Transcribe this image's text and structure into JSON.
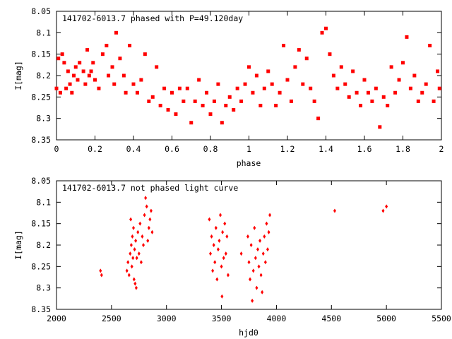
{
  "chart_data": [
    {
      "type": "scatter",
      "title": "141702-6013.7 phased with P=49.120day",
      "xlabel": "phase",
      "ylabel": "I[mag]",
      "xlim": [
        0,
        2
      ],
      "ylim": [
        8.35,
        8.05
      ],
      "y_inverted": true,
      "xticks": [
        0,
        0.2,
        0.4,
        0.6,
        0.8,
        1,
        1.2,
        1.4,
        1.6,
        1.8,
        2
      ],
      "yticks": [
        8.05,
        8.1,
        8.15,
        8.2,
        8.25,
        8.3,
        8.35
      ],
      "marker_color": "#ff0000",
      "marker": "square",
      "points": [
        [
          0.0,
          8.23
        ],
        [
          0.01,
          8.16
        ],
        [
          0.02,
          8.24
        ],
        [
          0.03,
          8.15
        ],
        [
          0.04,
          8.17
        ],
        [
          0.05,
          8.23
        ],
        [
          0.06,
          8.19
        ],
        [
          0.07,
          8.22
        ],
        [
          0.08,
          8.24
        ],
        [
          0.09,
          8.2
        ],
        [
          0.1,
          8.18
        ],
        [
          0.11,
          8.21
        ],
        [
          0.12,
          8.17
        ],
        [
          0.14,
          8.19
        ],
        [
          0.15,
          8.22
        ],
        [
          0.16,
          8.14
        ],
        [
          0.17,
          8.2
        ],
        [
          0.18,
          8.19
        ],
        [
          0.19,
          8.17
        ],
        [
          0.2,
          8.21
        ],
        [
          0.22,
          8.23
        ],
        [
          0.24,
          8.15
        ],
        [
          0.26,
          8.13
        ],
        [
          0.27,
          8.2
        ],
        [
          0.29,
          8.18
        ],
        [
          0.3,
          8.22
        ],
        [
          0.31,
          8.1
        ],
        [
          0.33,
          8.16
        ],
        [
          0.35,
          8.2
        ],
        [
          0.36,
          8.24
        ],
        [
          0.38,
          8.13
        ],
        [
          0.4,
          8.22
        ],
        [
          0.42,
          8.24
        ],
        [
          0.44,
          8.21
        ],
        [
          0.46,
          8.15
        ],
        [
          0.48,
          8.26
        ],
        [
          0.5,
          8.25
        ],
        [
          0.52,
          8.18
        ],
        [
          0.54,
          8.27
        ],
        [
          0.56,
          8.23
        ],
        [
          0.58,
          8.28
        ],
        [
          0.6,
          8.24
        ],
        [
          0.62,
          8.29
        ],
        [
          0.64,
          8.23
        ],
        [
          0.66,
          8.26
        ],
        [
          0.68,
          8.23
        ],
        [
          0.7,
          8.31
        ],
        [
          0.72,
          8.26
        ],
        [
          0.74,
          8.21
        ],
        [
          0.76,
          8.27
        ],
        [
          0.78,
          8.24
        ],
        [
          0.8,
          8.29
        ],
        [
          0.82,
          8.26
        ],
        [
          0.84,
          8.22
        ],
        [
          0.86,
          8.31
        ],
        [
          0.88,
          8.27
        ],
        [
          0.9,
          8.25
        ],
        [
          0.92,
          8.28
        ],
        [
          0.94,
          8.23
        ],
        [
          0.96,
          8.26
        ],
        [
          0.98,
          8.22
        ],
        [
          1.0,
          8.18
        ],
        [
          1.02,
          8.24
        ],
        [
          1.04,
          8.2
        ],
        [
          1.06,
          8.27
        ],
        [
          1.08,
          8.23
        ],
        [
          1.1,
          8.19
        ],
        [
          1.12,
          8.22
        ],
        [
          1.14,
          8.27
        ],
        [
          1.16,
          8.24
        ],
        [
          1.18,
          8.13
        ],
        [
          1.2,
          8.21
        ],
        [
          1.22,
          8.26
        ],
        [
          1.24,
          8.18
        ],
        [
          1.26,
          8.14
        ],
        [
          1.28,
          8.22
        ],
        [
          1.3,
          8.16
        ],
        [
          1.32,
          8.23
        ],
        [
          1.34,
          8.26
        ],
        [
          1.36,
          8.3
        ],
        [
          1.38,
          8.1
        ],
        [
          1.4,
          8.09
        ],
        [
          1.42,
          8.15
        ],
        [
          1.44,
          8.2
        ],
        [
          1.46,
          8.23
        ],
        [
          1.48,
          8.18
        ],
        [
          1.5,
          8.22
        ],
        [
          1.52,
          8.25
        ],
        [
          1.54,
          8.19
        ],
        [
          1.56,
          8.24
        ],
        [
          1.58,
          8.27
        ],
        [
          1.6,
          8.21
        ],
        [
          1.62,
          8.24
        ],
        [
          1.64,
          8.26
        ],
        [
          1.66,
          8.23
        ],
        [
          1.68,
          8.32
        ],
        [
          1.7,
          8.25
        ],
        [
          1.72,
          8.27
        ],
        [
          1.74,
          8.18
        ],
        [
          1.76,
          8.24
        ],
        [
          1.78,
          8.21
        ],
        [
          1.8,
          8.17
        ],
        [
          1.82,
          8.11
        ],
        [
          1.84,
          8.23
        ],
        [
          1.86,
          8.2
        ],
        [
          1.88,
          8.26
        ],
        [
          1.9,
          8.24
        ],
        [
          1.92,
          8.22
        ],
        [
          1.94,
          8.13
        ],
        [
          1.96,
          8.26
        ],
        [
          1.98,
          8.19
        ],
        [
          1.99,
          8.23
        ]
      ]
    },
    {
      "type": "scatter",
      "title": "141702-6013.7 not phased light curve",
      "xlabel": "hjd0",
      "ylabel": "I[mag]",
      "xlim": [
        2000,
        5500
      ],
      "ylim": [
        8.35,
        8.05
      ],
      "y_inverted": true,
      "xticks": [
        2000,
        2500,
        3000,
        3500,
        4000,
        4500,
        5000,
        5500
      ],
      "yticks": [
        8.05,
        8.1,
        8.15,
        8.2,
        8.25,
        8.3,
        8.35
      ],
      "marker_color": "#ff0000",
      "marker": "diamond",
      "points": [
        [
          2400,
          8.26
        ],
        [
          2410,
          8.27
        ],
        [
          2640,
          8.26
        ],
        [
          2650,
          8.24
        ],
        [
          2660,
          8.27
        ],
        [
          2670,
          8.22
        ],
        [
          2675,
          8.14
        ],
        [
          2680,
          8.2
        ],
        [
          2685,
          8.25
        ],
        [
          2690,
          8.18
        ],
        [
          2695,
          8.23
        ],
        [
          2700,
          8.16
        ],
        [
          2705,
          8.28
        ],
        [
          2710,
          8.21
        ],
        [
          2715,
          8.29
        ],
        [
          2720,
          8.19
        ],
        [
          2725,
          8.3
        ],
        [
          2730,
          8.23
        ],
        [
          2740,
          8.17
        ],
        [
          2750,
          8.22
        ],
        [
          2760,
          8.15
        ],
        [
          2770,
          8.24
        ],
        [
          2780,
          8.18
        ],
        [
          2790,
          8.2
        ],
        [
          2800,
          8.13
        ],
        [
          2810,
          8.09
        ],
        [
          2820,
          8.11
        ],
        [
          2830,
          8.19
        ],
        [
          2840,
          8.16
        ],
        [
          2850,
          8.14
        ],
        [
          2860,
          8.12
        ],
        [
          2870,
          8.17
        ],
        [
          3390,
          8.14
        ],
        [
          3400,
          8.22
        ],
        [
          3410,
          8.18
        ],
        [
          3420,
          8.26
        ],
        [
          3430,
          8.2
        ],
        [
          3440,
          8.24
        ],
        [
          3450,
          8.16
        ],
        [
          3460,
          8.28
        ],
        [
          3470,
          8.21
        ],
        [
          3480,
          8.19
        ],
        [
          3490,
          8.13
        ],
        [
          3500,
          8.25
        ],
        [
          3505,
          8.32
        ],
        [
          3510,
          8.17
        ],
        [
          3520,
          8.23
        ],
        [
          3530,
          8.15
        ],
        [
          3540,
          8.22
        ],
        [
          3550,
          8.18
        ],
        [
          3560,
          8.27
        ],
        [
          3680,
          8.22
        ],
        [
          3740,
          8.18
        ],
        [
          3750,
          8.24
        ],
        [
          3760,
          8.28
        ],
        [
          3770,
          8.2
        ],
        [
          3780,
          8.33
        ],
        [
          3790,
          8.26
        ],
        [
          3800,
          8.16
        ],
        [
          3810,
          8.23
        ],
        [
          3820,
          8.3
        ],
        [
          3830,
          8.21
        ],
        [
          3840,
          8.25
        ],
        [
          3850,
          8.19
        ],
        [
          3860,
          8.27
        ],
        [
          3870,
          8.31
        ],
        [
          3880,
          8.22
        ],
        [
          3890,
          8.18
        ],
        [
          3900,
          8.24
        ],
        [
          3910,
          8.15
        ],
        [
          3920,
          8.21
        ],
        [
          3930,
          8.17
        ],
        [
          3940,
          8.13
        ],
        [
          4530,
          8.12
        ],
        [
          4970,
          8.12
        ],
        [
          5000,
          8.11
        ]
      ]
    }
  ]
}
